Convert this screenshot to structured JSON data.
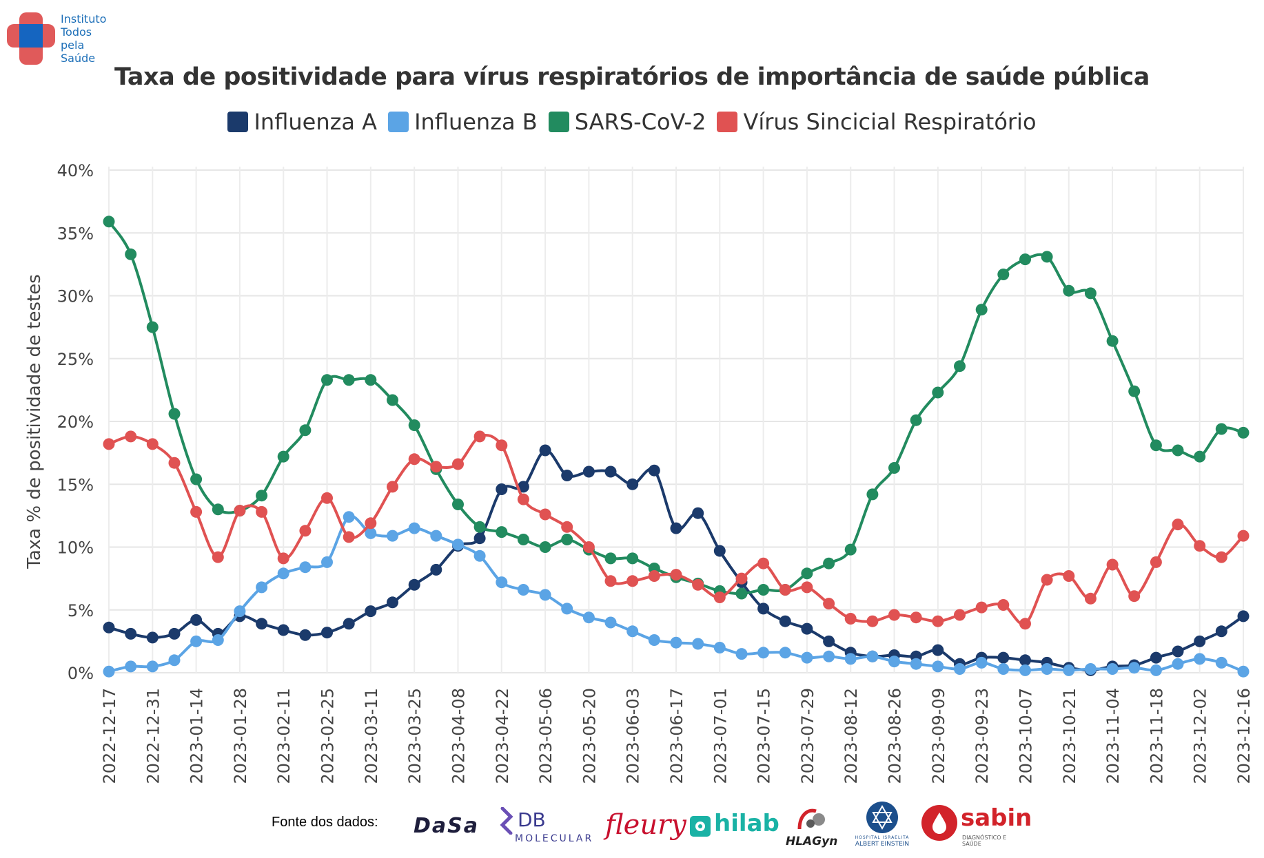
{
  "brand": {
    "name_lines": [
      "Instituto",
      "Todos",
      "pela",
      "Saúde"
    ],
    "colors": {
      "red": "#e05a5a",
      "blue": "#1565c0"
    }
  },
  "chart_data": {
    "type": "line",
    "title": "Taxa de positividade para vírus respiratórios de importância de saúde pública",
    "ylabel": "Taxa % de positividade de testes",
    "xlabel": "",
    "ylim": [
      0,
      40
    ],
    "yticks": [
      "0%",
      "5%",
      "10%",
      "15%",
      "20%",
      "25%",
      "30%",
      "35%",
      "40%"
    ],
    "grid": true,
    "legend_position": "top-center",
    "x_tick_labels": [
      "2022-12-17",
      "2022-12-31",
      "2023-01-14",
      "2023-01-28",
      "2023-02-11",
      "2023-02-25",
      "2023-03-11",
      "2023-03-25",
      "2023-04-08",
      "2023-04-22",
      "2023-05-06",
      "2023-05-20",
      "2023-06-03",
      "2023-06-17",
      "2023-07-01",
      "2023-07-15",
      "2023-07-29",
      "2023-08-12",
      "2023-08-26",
      "2023-09-09",
      "2023-09-23",
      "2023-10-07",
      "2023-10-21",
      "2023-11-04",
      "2023-11-18",
      "2023-12-02",
      "2023-12-16"
    ],
    "x": [
      "2022-12-17",
      "2022-12-24",
      "2022-12-31",
      "2023-01-07",
      "2023-01-14",
      "2023-01-21",
      "2023-01-28",
      "2023-02-04",
      "2023-02-11",
      "2023-02-18",
      "2023-02-25",
      "2023-03-04",
      "2023-03-11",
      "2023-03-18",
      "2023-03-25",
      "2023-04-01",
      "2023-04-08",
      "2023-04-15",
      "2023-04-22",
      "2023-04-29",
      "2023-05-06",
      "2023-05-13",
      "2023-05-20",
      "2023-05-27",
      "2023-06-03",
      "2023-06-10",
      "2023-06-17",
      "2023-06-24",
      "2023-07-01",
      "2023-07-08",
      "2023-07-15",
      "2023-07-22",
      "2023-07-29",
      "2023-08-05",
      "2023-08-12",
      "2023-08-19",
      "2023-08-26",
      "2023-09-02",
      "2023-09-09",
      "2023-09-16",
      "2023-09-23",
      "2023-09-30",
      "2023-10-07",
      "2023-10-14",
      "2023-10-21",
      "2023-10-28",
      "2023-11-04",
      "2023-11-11",
      "2023-11-18",
      "2023-11-25",
      "2023-12-02",
      "2023-12-09",
      "2023-12-16"
    ],
    "series": [
      {
        "name": "Influenza A",
        "color": "#1b3a6b",
        "values": [
          3.6,
          3.1,
          2.8,
          3.1,
          4.2,
          3.1,
          4.5,
          3.9,
          3.4,
          3.0,
          3.2,
          3.9,
          4.9,
          5.6,
          7.0,
          8.2,
          10.1,
          10.7,
          14.6,
          14.8,
          17.7,
          15.7,
          16.0,
          16.0,
          15.0,
          16.1,
          11.5,
          12.7,
          9.7,
          7.2,
          5.1,
          4.1,
          3.5,
          2.5,
          1.6,
          1.3,
          1.4,
          1.3,
          1.8,
          0.7,
          1.2,
          1.2,
          1.0,
          0.8,
          0.4,
          0.2,
          0.5,
          0.6,
          1.2,
          1.7,
          2.5,
          3.3,
          4.5
        ]
      },
      {
        "name": "Influenza B",
        "color": "#5ba4e5",
        "values": [
          0.1,
          0.5,
          0.5,
          1.0,
          2.5,
          2.6,
          4.9,
          6.8,
          7.9,
          8.4,
          8.8,
          12.4,
          11.1,
          10.9,
          11.5,
          10.9,
          10.2,
          9.3,
          7.2,
          6.6,
          6.2,
          5.1,
          4.4,
          4.0,
          3.3,
          2.6,
          2.4,
          2.3,
          2.0,
          1.5,
          1.6,
          1.6,
          1.2,
          1.3,
          1.1,
          1.3,
          0.9,
          0.7,
          0.5,
          0.3,
          0.8,
          0.3,
          0.2,
          0.3,
          0.2,
          0.3,
          0.3,
          0.4,
          0.2,
          0.7,
          1.1,
          0.8,
          0.1
        ]
      },
      {
        "name": "SARS-CoV-2",
        "color": "#228b5f",
        "values": [
          35.9,
          33.3,
          27.5,
          20.6,
          15.4,
          13.0,
          12.9,
          14.1,
          17.2,
          19.3,
          23.3,
          23.3,
          23.3,
          21.7,
          19.7,
          16.2,
          13.4,
          11.6,
          11.2,
          10.6,
          10.0,
          10.6,
          9.8,
          9.1,
          9.1,
          8.3,
          7.6,
          7.1,
          6.5,
          6.3,
          6.6,
          6.6,
          7.9,
          8.7,
          9.8,
          14.2,
          16.3,
          20.1,
          22.3,
          24.4,
          28.9,
          31.7,
          32.9,
          33.1,
          30.4,
          30.2,
          26.4,
          22.4,
          18.1,
          17.7,
          17.2,
          19.4,
          19.1
        ]
      },
      {
        "name": "Vírus Sincicial Respiratório",
        "color": "#e05252",
        "values": [
          18.2,
          18.8,
          18.2,
          16.7,
          12.8,
          9.2,
          12.9,
          12.8,
          9.1,
          11.3,
          13.9,
          10.8,
          11.9,
          14.8,
          17.0,
          16.4,
          16.6,
          18.8,
          18.1,
          13.8,
          12.6,
          11.6,
          10.0,
          7.3,
          7.3,
          7.7,
          7.8,
          7.0,
          6.0,
          7.5,
          8.7,
          6.6,
          6.8,
          5.5,
          4.3,
          4.1,
          4.6,
          4.4,
          4.1,
          4.6,
          5.2,
          5.4,
          3.9,
          7.4,
          7.7,
          5.9,
          8.6,
          6.1,
          8.8,
          11.8,
          10.1,
          9.2,
          10.9
        ]
      }
    ]
  },
  "sources": {
    "label": "Fonte dos dados:",
    "logos": [
      {
        "name": "dasa",
        "text": "DaSa",
        "color": "#1e1e3c"
      },
      {
        "name": "db-molecular",
        "text": "DB",
        "sub": "MOLECULAR",
        "color": "#3b3b8f"
      },
      {
        "name": "fleury",
        "text": "fleury",
        "color": "#c8102e"
      },
      {
        "name": "hilab",
        "text": "hilab",
        "color": "#1ab2a5"
      },
      {
        "name": "hlagyn",
        "text": "HLAGyn",
        "color": "#222222"
      },
      {
        "name": "einstein",
        "text": "ALBERT EINSTEIN",
        "sub": "HOSPITAL ISRAELITA",
        "color": "#1c4f8c"
      },
      {
        "name": "sabin",
        "text": "sabin",
        "sub": "DIAGNÓSTICO E SAÚDE",
        "color": "#d2232a"
      }
    ]
  }
}
